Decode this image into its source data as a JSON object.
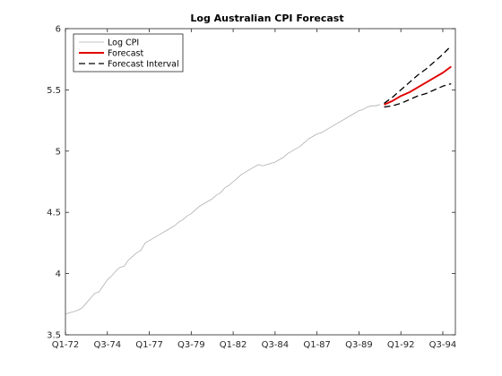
{
  "chart_data": {
    "type": "line",
    "title": "Log Australian CPI Forecast",
    "xlabel": "",
    "ylabel": "",
    "xlim": [
      0,
      93
    ],
    "ylim": [
      3.5,
      6
    ],
    "grid": false,
    "legend_position": "top-left",
    "x_ticks": [
      {
        "x": 0,
        "label": "Q1-72"
      },
      {
        "x": 10,
        "label": "Q3-74"
      },
      {
        "x": 20,
        "label": "Q1-77"
      },
      {
        "x": 30,
        "label": "Q3-79"
      },
      {
        "x": 40,
        "label": "Q1-82"
      },
      {
        "x": 50,
        "label": "Q3-84"
      },
      {
        "x": 60,
        "label": "Q1-87"
      },
      {
        "x": 70,
        "label": "Q3-89"
      },
      {
        "x": 80,
        "label": "Q1-92"
      },
      {
        "x": 90,
        "label": "Q3-94"
      }
    ],
    "y_ticks": [
      3.5,
      4,
      4.5,
      5,
      5.5,
      6
    ],
    "y_tick_labels": [
      "3.5",
      "4",
      "4.5",
      "5",
      "5.5",
      "6"
    ],
    "series": [
      {
        "name": "Log CPI",
        "color": "#b0b0b0",
        "style": "solid",
        "points": [
          [
            0,
            3.67
          ],
          [
            3,
            3.7
          ],
          [
            4,
            3.72
          ],
          [
            5,
            3.76
          ],
          [
            6,
            3.8
          ],
          [
            7,
            3.84
          ],
          [
            8,
            3.85
          ],
          [
            9,
            3.9
          ],
          [
            10,
            3.95
          ],
          [
            11,
            3.98
          ],
          [
            12,
            4.02
          ],
          [
            13,
            4.05
          ],
          [
            14,
            4.06
          ],
          [
            15,
            4.11
          ],
          [
            16,
            4.14
          ],
          [
            17,
            4.17
          ],
          [
            18,
            4.19
          ],
          [
            19,
            4.25
          ],
          [
            20,
            4.27
          ],
          [
            21,
            4.29
          ],
          [
            22,
            4.31
          ],
          [
            23,
            4.33
          ],
          [
            24,
            4.35
          ],
          [
            25,
            4.37
          ],
          [
            26,
            4.39
          ],
          [
            27,
            4.42
          ],
          [
            28,
            4.44
          ],
          [
            29,
            4.47
          ],
          [
            30,
            4.49
          ],
          [
            31,
            4.52
          ],
          [
            32,
            4.55
          ],
          [
            33,
            4.57
          ],
          [
            34,
            4.59
          ],
          [
            35,
            4.61
          ],
          [
            36,
            4.64
          ],
          [
            37,
            4.66
          ],
          [
            38,
            4.7
          ],
          [
            39,
            4.72
          ],
          [
            40,
            4.75
          ],
          [
            41,
            4.78
          ],
          [
            42,
            4.81
          ],
          [
            43,
            4.83
          ],
          [
            44,
            4.85
          ],
          [
            45,
            4.87
          ],
          [
            46,
            4.89
          ],
          [
            47,
            4.88
          ],
          [
            48,
            4.89
          ],
          [
            49,
            4.9
          ],
          [
            50,
            4.91
          ],
          [
            51,
            4.93
          ],
          [
            52,
            4.95
          ],
          [
            53,
            4.98
          ],
          [
            54,
            5.0
          ],
          [
            55,
            5.02
          ],
          [
            56,
            5.04
          ],
          [
            57,
            5.07
          ],
          [
            58,
            5.1
          ],
          [
            59,
            5.12
          ],
          [
            60,
            5.14
          ],
          [
            61,
            5.15
          ],
          [
            62,
            5.17
          ],
          [
            63,
            5.19
          ],
          [
            64,
            5.21
          ],
          [
            65,
            5.23
          ],
          [
            66,
            5.25
          ],
          [
            67,
            5.27
          ],
          [
            68,
            5.29
          ],
          [
            69,
            5.31
          ],
          [
            70,
            5.33
          ],
          [
            71,
            5.34
          ],
          [
            72,
            5.36
          ],
          [
            73,
            5.37
          ],
          [
            74,
            5.37
          ],
          [
            75,
            5.38
          ]
        ]
      },
      {
        "name": "Forecast",
        "color": "#e00000",
        "style": "solid",
        "points": [
          [
            76,
            5.38
          ],
          [
            78,
            5.41
          ],
          [
            80,
            5.45
          ],
          [
            82,
            5.48
          ],
          [
            84,
            5.52
          ],
          [
            86,
            5.56
          ],
          [
            88,
            5.6
          ],
          [
            90,
            5.64
          ],
          [
            92,
            5.69
          ]
        ]
      },
      {
        "name": "Forecast Interval",
        "color": "#000000",
        "style": "dashed",
        "points": [
          [
            76,
            5.39
          ],
          [
            78,
            5.44
          ],
          [
            80,
            5.5
          ],
          [
            82,
            5.56
          ],
          [
            84,
            5.62
          ],
          [
            86,
            5.67
          ],
          [
            88,
            5.73
          ],
          [
            90,
            5.79
          ],
          [
            92,
            5.86
          ]
        ]
      },
      {
        "name": "Forecast Interval",
        "color": "#000000",
        "style": "dashed",
        "legend": false,
        "points": [
          [
            76,
            5.36
          ],
          [
            78,
            5.37
          ],
          [
            80,
            5.39
          ],
          [
            82,
            5.42
          ],
          [
            84,
            5.45
          ],
          [
            86,
            5.47
          ],
          [
            88,
            5.5
          ],
          [
            90,
            5.53
          ],
          [
            92,
            5.55
          ]
        ]
      }
    ]
  }
}
